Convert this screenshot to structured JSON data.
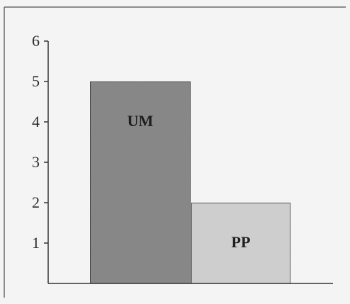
{
  "chart_data": {
    "type": "bar",
    "title": "",
    "xlabel": "",
    "ylabel": "",
    "categories": [
      "UM",
      "PP"
    ],
    "values": [
      5,
      2
    ],
    "ylim": [
      0,
      6
    ],
    "yticks": [
      "1",
      "2",
      "3",
      "4",
      "5",
      "6"
    ],
    "bar_labels": [
      "UM",
      "PP"
    ],
    "bar_colors": [
      "#8a8a8a",
      "#d2d2d2"
    ],
    "grid": false,
    "legend": "none"
  }
}
